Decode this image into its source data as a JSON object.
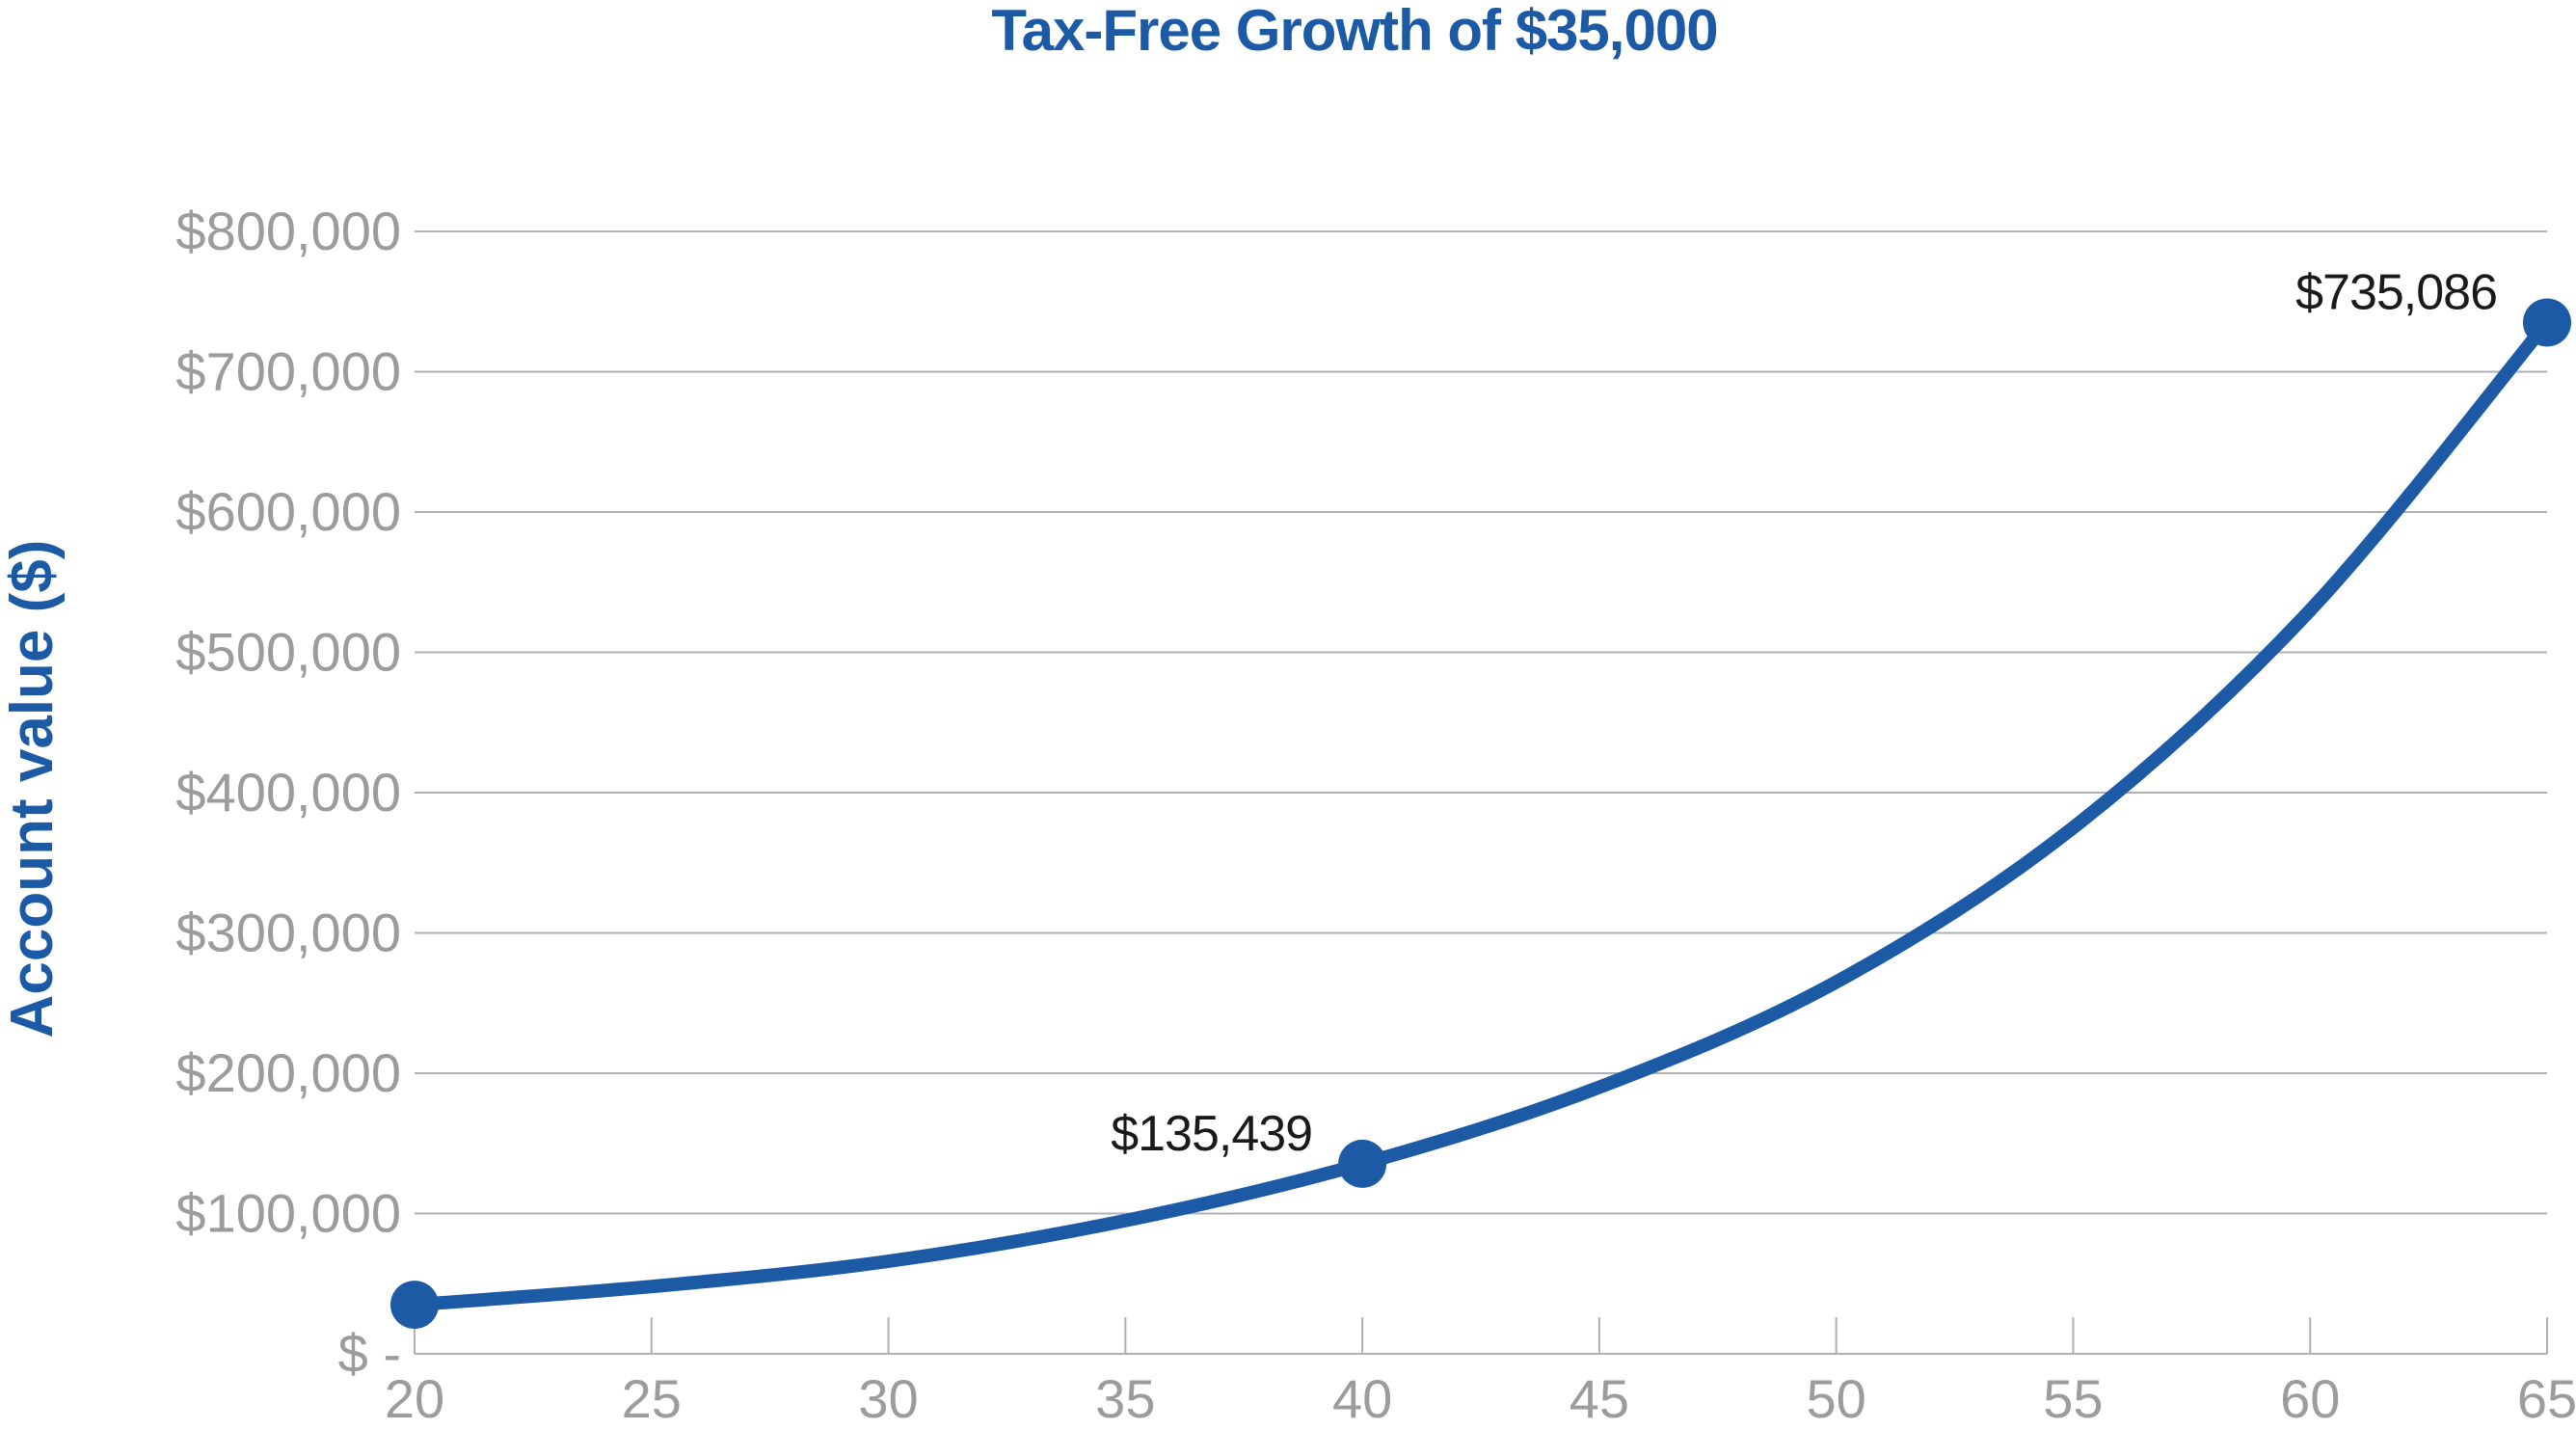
{
  "chart_data": {
    "type": "line",
    "title": "Tax-Free Growth of $35,000",
    "xlabel": "",
    "ylabel": "Account value ($)",
    "x_ticks": [
      20,
      25,
      30,
      35,
      40,
      45,
      50,
      55,
      60,
      65
    ],
    "xlim": [
      20,
      65
    ],
    "ylim": [
      0,
      800000
    ],
    "y_ticks": [
      {
        "value": 0,
        "label": "$ -"
      },
      {
        "value": 100000,
        "label": "$100,000"
      },
      {
        "value": 200000,
        "label": "$200,000"
      },
      {
        "value": 300000,
        "label": "$300,000"
      },
      {
        "value": 400000,
        "label": "$400,000"
      },
      {
        "value": 500000,
        "label": "$500,000"
      },
      {
        "value": 600000,
        "label": "$600,000"
      },
      {
        "value": 700000,
        "label": "$700,000"
      },
      {
        "value": 800000,
        "label": "$800,000"
      }
    ],
    "grid": true,
    "legend": "none",
    "series": [
      {
        "x": [
          20,
          25,
          30,
          35,
          40,
          45,
          50,
          55,
          60,
          65
        ],
        "values": [
          35000,
          48000,
          66000,
          95000,
          135439,
          190000,
          265000,
          375000,
          530000,
          735086
        ],
        "markers": [
          {
            "x": 20,
            "value": 35000,
            "label": ""
          },
          {
            "x": 40,
            "value": 135439,
            "label": "$135,439"
          },
          {
            "x": 65,
            "value": 735086,
            "label": "$735,086"
          }
        ]
      }
    ],
    "colors": {
      "series": "#1c5aa6",
      "title": "#1c5aa6",
      "axis_label": "#1c5aa6",
      "ticks": "#9b9c9e",
      "grid": "#aeb0b3",
      "data_label": "#1a1a1a"
    }
  }
}
